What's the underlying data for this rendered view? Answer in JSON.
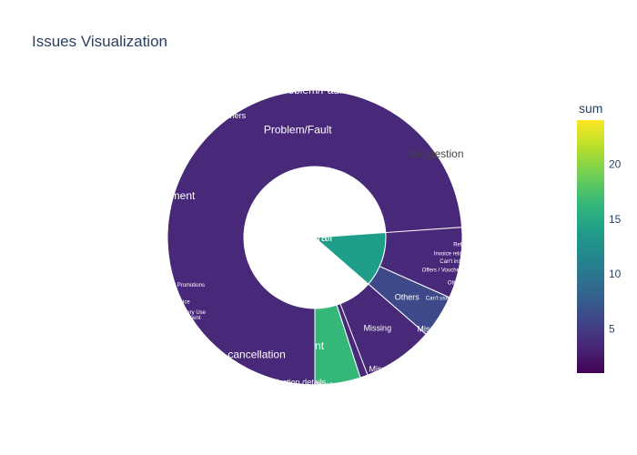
{
  "chart": {
    "title": "Issues Visualization"
  },
  "chart_data": {
    "type": "sunburst",
    "title": "Issues Visualization",
    "color_metric": "sum",
    "colorscale": "viridis",
    "colorbar": {
      "title": "sum",
      "range": [
        1,
        24
      ],
      "ticks": [
        5,
        10,
        15,
        20
      ]
    },
    "levels": [
      {
        "ring": 1,
        "segments": [
          {
            "label": "Overall",
            "start": 86,
            "end": 131,
            "value": 15
          }
        ]
      },
      {
        "ring": 1,
        "segments": [
          {
            "label": "Suggestion",
            "start": 211,
            "end": 302,
            "value": 15
          },
          {
            "label": "Payment",
            "start": 162,
            "end": 211,
            "value": 17
          },
          {
            "label": "Problem/Fault",
            "start": 180,
            "end": 162,
            "value": 3
          },
          {
            "label": "Missing",
            "start": 131,
            "end": 159,
            "value": 4
          },
          {
            "label": "Others",
            "start": 114,
            "end": 131,
            "value": 7
          },
          {
            "label": "",
            "start": 86,
            "end": 114,
            "value": 3
          }
        ]
      },
      {
        "ring": 2,
        "segments": [
          {
            "label": "Suggestion",
            "start": 21,
            "end": 90,
            "value": 24
          },
          {
            "label": "Problem/Fault",
            "start": 336,
            "end": 21,
            "value": 11
          },
          {
            "label": "Others",
            "start": 317,
            "end": 336,
            "value": 6
          },
          {
            "label": "Payment",
            "start": 256,
            "end": 317,
            "value": 17
          },
          {
            "label": "VIP / Offers / Promotions",
            "start": 248,
            "end": 256,
            "value": 3
          },
          {
            "label": "Invoice",
            "start": 242,
            "end": 248,
            "value": 2
          },
          {
            "label": "AppGallery Use",
            "start": 239,
            "end": 242,
            "value": 1
          },
          {
            "label": "Payment",
            "start": 237,
            "end": 239,
            "value": 1
          },
          {
            "label": "Subscription cancellation",
            "start": 198,
            "end": 237,
            "value": 16
          },
          {
            "label": "Query deduction details",
            "start": 187,
            "end": 198,
            "value": 5
          },
          {
            "label": "Consumption/Payment issues",
            "start": 182,
            "end": 187,
            "value": 3
          },
          {
            "label": "AppGallery Use/Visitor",
            "start": 178,
            "end": 182,
            "value": 2
          },
          {
            "label": "AppGallery Use",
            "start": 174,
            "end": 178,
            "value": 2
          },
          {
            "label": "Third Party APPs",
            "start": 169,
            "end": 174,
            "value": 2
          },
          {
            "label": "",
            "start": 166,
            "end": 169,
            "value": 1
          },
          {
            "label": "Missing",
            "start": 139,
            "end": 166,
            "value": 8
          },
          {
            "label": "Missing",
            "start": 117,
            "end": 139,
            "value": 7
          },
          {
            "label": "Can't use or acquire",
            "start": 110,
            "end": 117,
            "value": 3
          },
          {
            "label": "Others",
            "start": 104,
            "end": 110,
            "value": 2
          },
          {
            "label": "Offers / Vouchers / Promotions",
            "start": 100,
            "end": 104,
            "value": 2
          },
          {
            "label": "Can't install Apps",
            "start": 97,
            "end": 100,
            "value": 2
          },
          {
            "label": "Invoice related request",
            "start": 94,
            "end": 97,
            "value": 2
          },
          {
            "label": "Refund",
            "start": 90,
            "end": 94,
            "value": 1
          }
        ]
      }
    ],
    "segment_labels": {
      "ring0": [
        "Overall"
      ],
      "ring1": [
        "Suggestion",
        "Payment",
        "Problem/Fault",
        "Missing",
        "Others"
      ],
      "ring2": [
        "Suggestion",
        "Problem/Fault",
        "Others",
        "Payment",
        "VIP / Offers / Promotions",
        "Invoice",
        "Subscription cancellation",
        "Query deduction details",
        "AppGallery Use",
        "Third Party APPs",
        "Missing",
        "Can't use or acquire",
        "Can't install Apps",
        "Invoice related request",
        "Refund"
      ]
    }
  }
}
